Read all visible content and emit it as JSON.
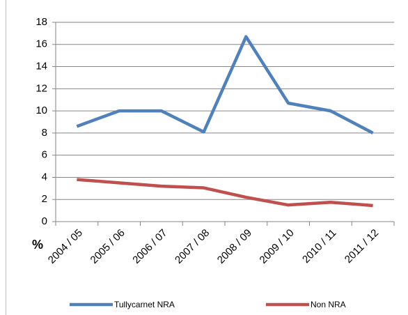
{
  "chart_data": {
    "type": "line",
    "y_label": "%",
    "categories": [
      "2004 / 05",
      "2005 / 06",
      "2006 / 07",
      "2007 / 08",
      "2008 / 09",
      "2009 / 10",
      "2010 / 11",
      "2011 / 12"
    ],
    "series": [
      {
        "name": "Tullycarnet NRA",
        "color": "#4f81bd",
        "values": [
          8.6,
          10,
          10,
          8.1,
          16.7,
          10.7,
          10,
          8.0
        ]
      },
      {
        "name": "Non NRA",
        "color": "#c0504d",
        "values": [
          3.8,
          3.5,
          3.2,
          3.05,
          2.2,
          1.5,
          1.75,
          1.45
        ]
      }
    ],
    "ylim": [
      0,
      18
    ],
    "yticks": [
      0,
      2,
      4,
      6,
      8,
      10,
      12,
      14,
      16,
      18
    ],
    "grid": true,
    "legend": "bottom"
  }
}
